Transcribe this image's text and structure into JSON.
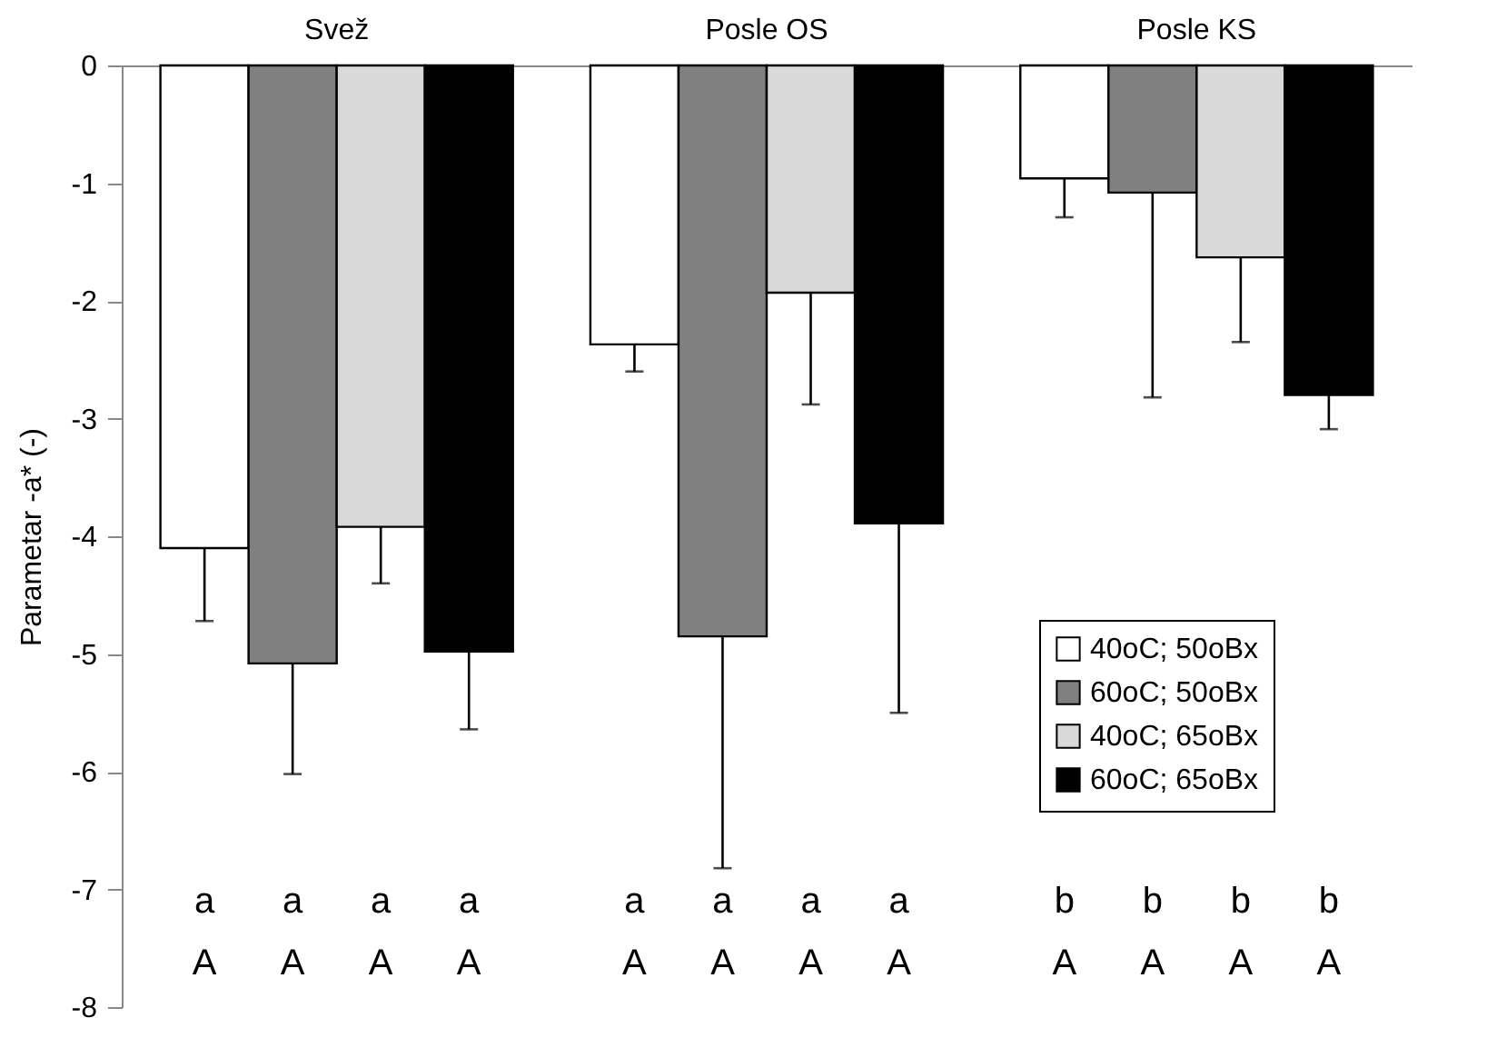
{
  "chart_data": {
    "type": "bar",
    "ylabel": "Parametar -a* (-)",
    "categories": [
      "Svež",
      "Posle OS",
      "Posle KS"
    ],
    "series": [
      {
        "name": "40oC; 50oBx",
        "color": "#ffffff",
        "values": [
          -4.1,
          -2.37,
          -0.96
        ],
        "errors": [
          [
            -4.72,
            -4.1
          ],
          [
            -2.6,
            -2.37
          ],
          [
            -1.29,
            -0.96
          ]
        ]
      },
      {
        "name": "60oC; 50oBx",
        "color": "#808080",
        "values": [
          -5.08,
          -4.85,
          -1.08
        ],
        "errors": [
          [
            -6.02,
            -5.08
          ],
          [
            -6.82,
            -4.85
          ],
          [
            -2.82,
            -1.08
          ]
        ]
      },
      {
        "name": "40oC; 65oBx",
        "color": "#d9d9d9",
        "values": [
          -3.92,
          -1.93,
          -1.63
        ],
        "errors": [
          [
            -4.4,
            -3.92
          ],
          [
            -2.88,
            -1.93
          ],
          [
            -2.35,
            -1.63
          ]
        ]
      },
      {
        "name": "60oC; 65oBx",
        "color": "#000000",
        "values": [
          -4.98,
          -3.89,
          -2.8
        ],
        "errors": [
          [
            -5.64,
            -4.98
          ],
          [
            -5.5,
            -3.89
          ],
          [
            -3.09,
            -2.8
          ]
        ]
      }
    ],
    "ylim": [
      -8,
      0
    ],
    "yticks": [
      -8,
      -7,
      -6,
      -5,
      -4,
      -3,
      -2,
      -1,
      0
    ],
    "grid": false,
    "legend": "right",
    "annotations": [
      "a",
      "a",
      "a",
      "a",
      "A",
      "A",
      "A",
      "A",
      "a",
      "a",
      "a",
      "a",
      "A",
      "A",
      "A",
      "A",
      "b",
      "b",
      "b",
      "b",
      "A",
      "A",
      "A",
      "A"
    ]
  }
}
